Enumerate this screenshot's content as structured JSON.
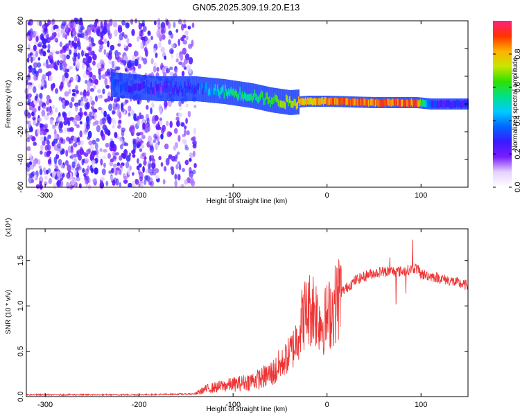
{
  "title": "GN05.2025.309.19.20.E13",
  "chart_data": [
    {
      "type": "heatmap",
      "name": "spectrogram",
      "xlabel": "Height of straight line (km)",
      "ylabel": "Frequency (Hz)",
      "xlim": [
        -320,
        150
      ],
      "ylim": [
        -60,
        60
      ],
      "xticks": [
        -300,
        -200,
        -100,
        0,
        100
      ],
      "yticks": [
        60,
        40,
        20,
        0,
        -20,
        -40,
        -60
      ],
      "colorbar": {
        "label": "Normalized spectral amplitude",
        "range": [
          0.0,
          1.0
        ],
        "ticks": [
          0.0,
          0.2,
          0.4,
          0.6,
          0.8
        ],
        "colors": [
          "#ffffff",
          "#e6d2ff",
          "#7a1dff",
          "#3a1aff",
          "#0066ff",
          "#00ccff",
          "#00e08a",
          "#30e000",
          "#c8e600",
          "#ffb000",
          "#ff3300",
          "#ff2080"
        ]
      },
      "features": [
        {
          "label": "noise region",
          "x_range": [
            -320,
            -140
          ],
          "freq_range": [
            -60,
            60
          ],
          "amplitude": 0.15
        },
        {
          "label": "signal band",
          "points": [
            {
              "x": -230,
              "freq": 14,
              "amp": 0.45
            },
            {
              "x": -180,
              "freq": 11,
              "amp": 0.3
            },
            {
              "x": -140,
              "freq": 11,
              "amp": 0.4
            },
            {
              "x": -110,
              "freq": 9,
              "amp": 0.6
            },
            {
              "x": -80,
              "freq": 6,
              "amp": 0.62
            },
            {
              "x": -60,
              "freq": 3,
              "amp": 0.7
            },
            {
              "x": -40,
              "freq": 1,
              "amp": 0.8
            },
            {
              "x": -20,
              "freq": 2,
              "amp": 0.85
            },
            {
              "x": 0,
              "freq": 2,
              "amp": 0.9
            },
            {
              "x": 50,
              "freq": 1,
              "amp": 0.95
            },
            {
              "x": 95,
              "freq": 1,
              "amp": 0.95
            },
            {
              "x": 110,
              "freq": 0,
              "amp": 0.35
            },
            {
              "x": 150,
              "freq": 0,
              "amp": 0.35
            }
          ]
        }
      ]
    },
    {
      "type": "line",
      "name": "snr",
      "xlabel": "Height of straight line (km)",
      "ylabel": "SNR (10 * v/v)",
      "scale_label": "(x10⁴)",
      "xlim": [
        -320,
        150
      ],
      "ylim": [
        0,
        1.85
      ],
      "xticks": [
        -300,
        -200,
        -100,
        0,
        100
      ],
      "yticks": [
        0.0,
        0.5,
        1.0,
        1.5
      ],
      "ytick_labels": [
        "0.0",
        "0.5",
        "1.0",
        "1.5"
      ],
      "series": [
        {
          "name": "SNR",
          "color": "#ee3333",
          "x": [
            -320,
            -200,
            -140,
            -130,
            -110,
            -90,
            -70,
            -55,
            -45,
            -35,
            -25,
            -15,
            -5,
            5,
            15,
            30,
            45,
            60,
            80,
            95,
            100,
            110,
            130,
            150
          ],
          "y": [
            0.02,
            0.02,
            0.03,
            0.08,
            0.12,
            0.15,
            0.2,
            0.28,
            0.4,
            0.55,
            0.9,
            1.0,
            0.8,
            0.95,
            1.15,
            1.28,
            1.35,
            1.38,
            1.38,
            1.42,
            1.35,
            1.33,
            1.28,
            1.22
          ]
        }
      ]
    }
  ]
}
